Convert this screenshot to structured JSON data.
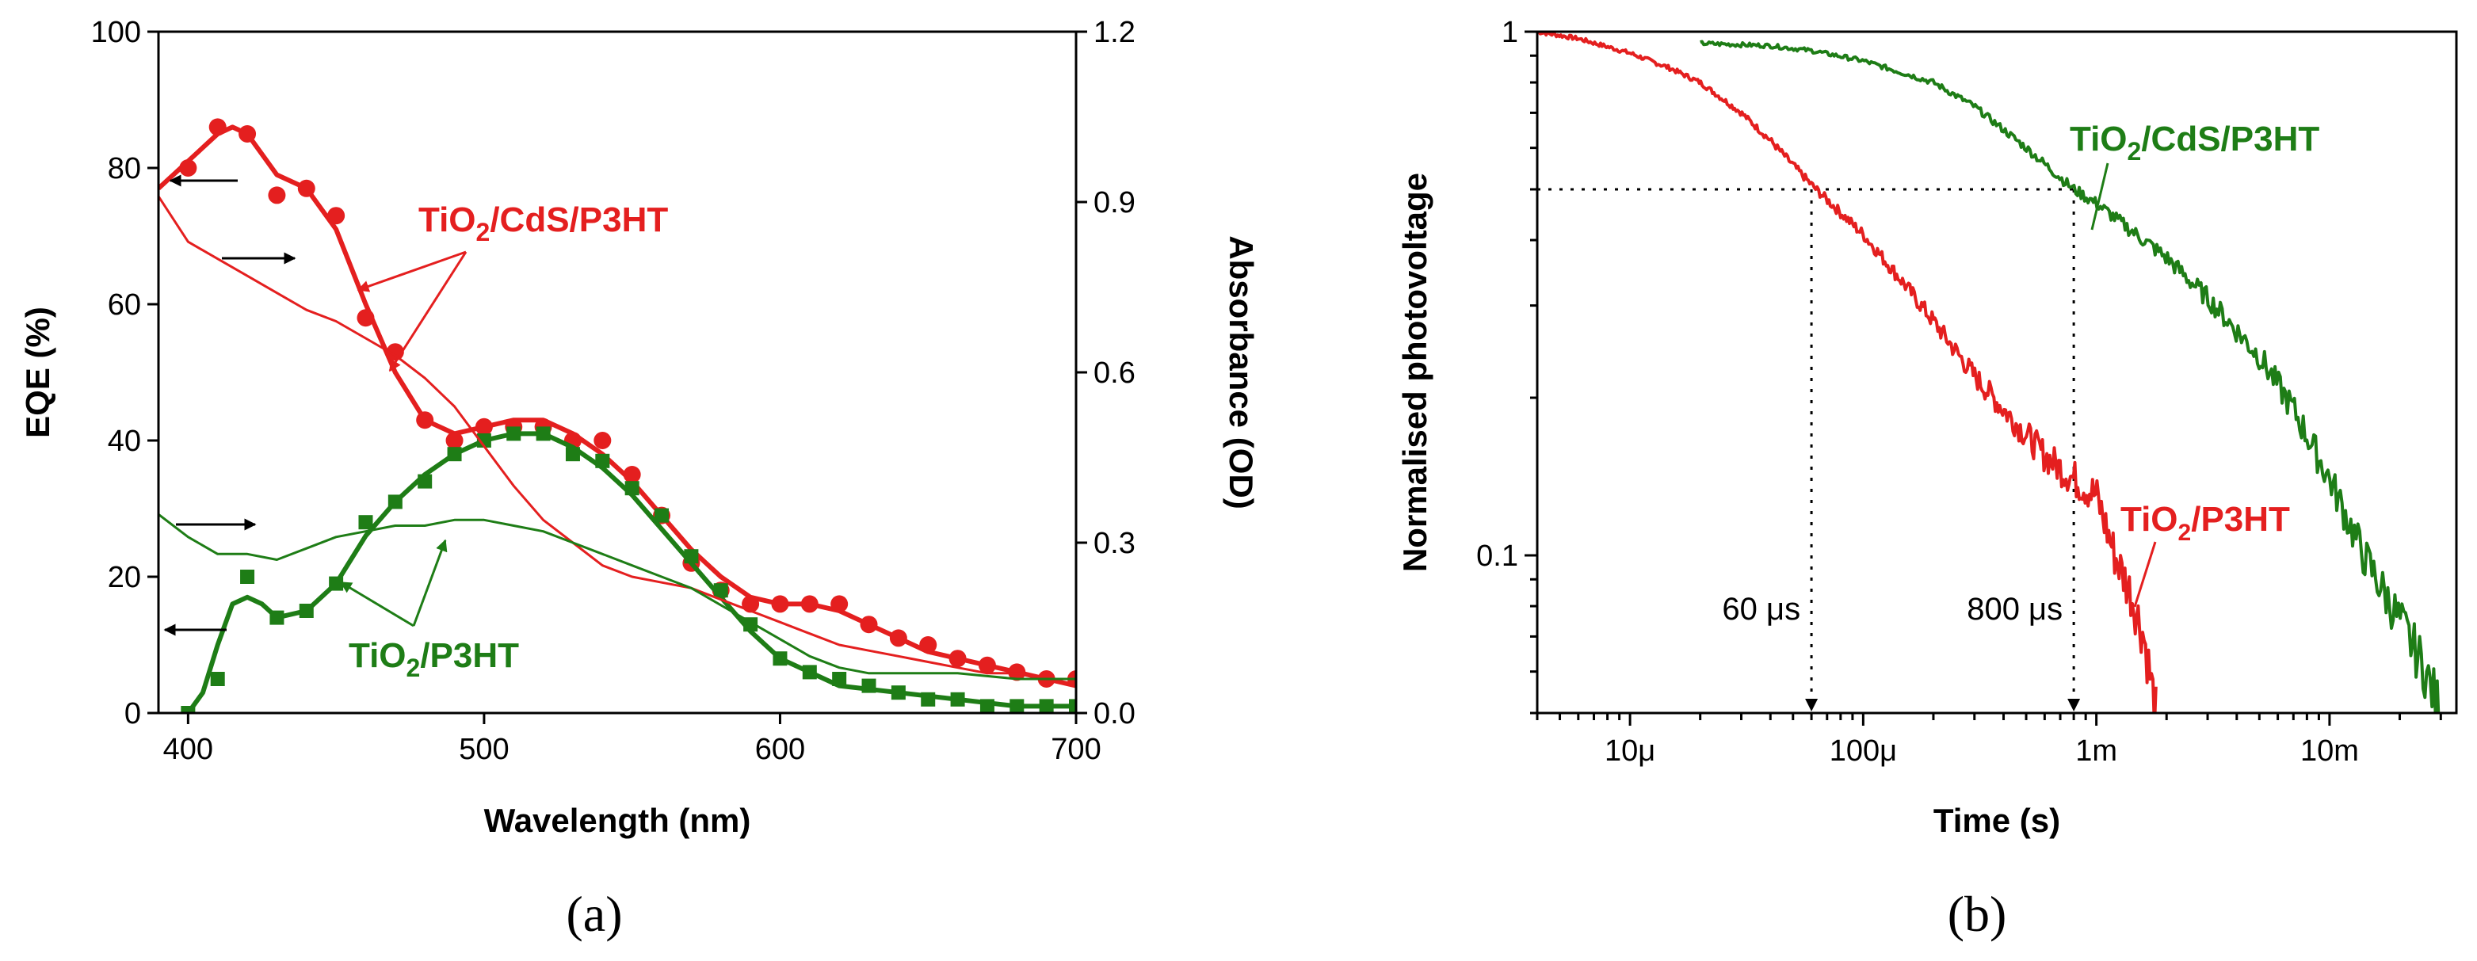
{
  "colors": {
    "red": "#e41f1f",
    "green": "#1e7d16",
    "black": "#000000"
  },
  "chart_data": [
    {
      "type": "line",
      "panel_label": "(a)",
      "xlabel": "Wavelength (nm)",
      "ylabel": "EQE (%)",
      "ylabel_right": "Absorbance (OD)",
      "xlim": [
        390,
        700
      ],
      "ylim": [
        0,
        100
      ],
      "ylim_right": [
        0,
        1.2
      ],
      "x_ticks": [
        400,
        500,
        600,
        700
      ],
      "y_ticks": [
        0,
        20,
        40,
        60,
        80,
        100
      ],
      "y_right_ticks": [
        "0.0",
        "0.3",
        "0.6",
        "0.9",
        "1.2"
      ],
      "series": [
        {
          "name": "TiO2/CdS/P3HT EQE",
          "axis": "left",
          "color": "#e41f1f",
          "marker": "circle",
          "x": [
            400,
            410,
            420,
            430,
            440,
            450,
            460,
            470,
            480,
            490,
            500,
            510,
            520,
            530,
            540,
            550,
            560,
            570,
            580,
            590,
            600,
            610,
            620,
            630,
            640,
            650,
            660,
            670,
            680,
            690,
            700
          ],
          "values": [
            80,
            86,
            85,
            76,
            77,
            73,
            58,
            53,
            43,
            40,
            42,
            42,
            42,
            40,
            40,
            35,
            29,
            22,
            18,
            16,
            16,
            16,
            16,
            13,
            11,
            10,
            8,
            7,
            6,
            5,
            5
          ],
          "curve_x": [
            390,
            400,
            410,
            415,
            420,
            430,
            440,
            450,
            460,
            470,
            480,
            490,
            500,
            510,
            520,
            530,
            540,
            550,
            560,
            570,
            580,
            590,
            600,
            610,
            620,
            630,
            640,
            650,
            660,
            670,
            680,
            690,
            700
          ],
          "curve_values": [
            77,
            81,
            85,
            86,
            85,
            79,
            77,
            71,
            60,
            50,
            43,
            41,
            42,
            43,
            43,
            41,
            38,
            34,
            29,
            24,
            20,
            17,
            16,
            16,
            15,
            13,
            11,
            9,
            8,
            7,
            6,
            5,
            4
          ]
        },
        {
          "name": "TiO2/P3HT EQE",
          "axis": "left",
          "color": "#1e7d16",
          "marker": "square",
          "x": [
            400,
            410,
            420,
            430,
            440,
            450,
            460,
            470,
            480,
            490,
            500,
            510,
            520,
            530,
            540,
            550,
            560,
            570,
            580,
            590,
            600,
            610,
            620,
            630,
            640,
            650,
            660,
            670,
            680,
            690,
            700
          ],
          "values": [
            0,
            5,
            20,
            14,
            15,
            19,
            28,
            31,
            34,
            38,
            40,
            41,
            41,
            38,
            37,
            33,
            29,
            23,
            18,
            13,
            8,
            6,
            5,
            4,
            3,
            2,
            2,
            1,
            1,
            1,
            1
          ],
          "curve_x": [
            400,
            405,
            410,
            415,
            420,
            425,
            430,
            440,
            450,
            460,
            470,
            480,
            490,
            500,
            510,
            520,
            530,
            540,
            550,
            560,
            570,
            580,
            590,
            600,
            610,
            620,
            640,
            660,
            680,
            700
          ],
          "curve_values": [
            0,
            3,
            10,
            16,
            17,
            16,
            14,
            15,
            19,
            26,
            31,
            35,
            38,
            40,
            41,
            41,
            39,
            36,
            32,
            27,
            22,
            17,
            12,
            8,
            6,
            4,
            3,
            2,
            1,
            1
          ]
        },
        {
          "name": "TiO2/CdS/P3HT absorbance",
          "axis": "right",
          "color": "#e41f1f",
          "marker": "none",
          "curve_x": [
            390,
            400,
            410,
            420,
            430,
            440,
            450,
            460,
            470,
            480,
            490,
            500,
            510,
            520,
            530,
            540,
            550,
            560,
            570,
            580,
            590,
            600,
            610,
            620,
            630,
            640,
            650,
            660,
            670,
            680,
            690,
            700
          ],
          "curve_values": [
            0.91,
            0.83,
            0.8,
            0.77,
            0.74,
            0.71,
            0.69,
            0.66,
            0.63,
            0.59,
            0.54,
            0.47,
            0.4,
            0.34,
            0.3,
            0.26,
            0.24,
            0.23,
            0.22,
            0.2,
            0.18,
            0.16,
            0.14,
            0.12,
            0.11,
            0.1,
            0.09,
            0.08,
            0.07,
            0.07,
            0.06,
            0.06
          ]
        },
        {
          "name": "TiO2/P3HT absorbance",
          "axis": "right",
          "color": "#1e7d16",
          "marker": "none",
          "curve_x": [
            390,
            400,
            410,
            420,
            430,
            440,
            450,
            460,
            470,
            480,
            490,
            500,
            510,
            520,
            530,
            540,
            550,
            560,
            570,
            580,
            590,
            600,
            610,
            620,
            630,
            640,
            660,
            680,
            700
          ],
          "curve_values": [
            0.35,
            0.31,
            0.28,
            0.28,
            0.27,
            0.29,
            0.31,
            0.32,
            0.33,
            0.33,
            0.34,
            0.34,
            0.33,
            0.32,
            0.3,
            0.28,
            0.26,
            0.24,
            0.22,
            0.19,
            0.16,
            0.13,
            0.1,
            0.08,
            0.07,
            0.07,
            0.07,
            0.06,
            0.06
          ]
        }
      ],
      "annotations": {
        "label_cds": {
          "base": "TiO",
          "sub": "2",
          "rest": "/CdS/P3HT",
          "color": "#e41f1f"
        },
        "label_p3ht": {
          "base": "TiO",
          "sub": "2",
          "rest": "/P3HT",
          "color": "#1e7d16"
        }
      }
    },
    {
      "type": "line",
      "panel_label": "(b)",
      "xlabel": "Time (s)",
      "ylabel": "Normalised photovoltage",
      "xscale": "log",
      "yscale": "log",
      "xlim": [
        4e-06,
        0.035
      ],
      "ylim": [
        0.05,
        1.0
      ],
      "x_ticks": [
        {
          "value": 1e-05,
          "label": "10μ"
        },
        {
          "value": 0.0001,
          "label": "100μ"
        },
        {
          "value": 0.001,
          "label": "1m"
        },
        {
          "value": 0.01,
          "label": "10m"
        }
      ],
      "y_ticks": [
        {
          "value": 1,
          "label": "1"
        },
        {
          "value": 0.1,
          "label": "0.1"
        }
      ],
      "half_level": 0.5,
      "series": [
        {
          "name": "TiO2/P3HT",
          "color": "#e41f1f",
          "x": [
            4e-06,
            6e-06,
            1e-05,
            1.5e-05,
            2e-05,
            3e-05,
            4e-05,
            6e-05,
            0.0001,
            0.00015,
            0.0002,
            0.0003,
            0.0004,
            0.0005,
            0.0006,
            0.0008,
            0.001,
            0.0012,
            0.0014,
            0.0016,
            0.0018
          ],
          "values": [
            1.0,
            0.97,
            0.91,
            0.85,
            0.8,
            0.7,
            0.62,
            0.51,
            0.41,
            0.33,
            0.28,
            0.22,
            0.19,
            0.17,
            0.155,
            0.14,
            0.13,
            0.1,
            0.085,
            0.07,
            0.05
          ]
        },
        {
          "name": "TiO2/CdS/P3HT",
          "color": "#1e7d16",
          "x": [
            2e-05,
            4e-05,
            6e-05,
            0.0001,
            0.0002,
            0.0003,
            0.0005,
            0.0008,
            0.001,
            0.002,
            0.003,
            0.005,
            0.007,
            0.01,
            0.014,
            0.02,
            0.025,
            0.03
          ],
          "values": [
            0.95,
            0.94,
            0.92,
            0.88,
            0.8,
            0.72,
            0.6,
            0.5,
            0.47,
            0.37,
            0.31,
            0.24,
            0.19,
            0.14,
            0.1,
            0.075,
            0.062,
            0.05
          ]
        }
      ],
      "markers": [
        {
          "x": 6e-05,
          "label": "60 μs"
        },
        {
          "x": 0.0008,
          "label": "800 μs"
        }
      ],
      "annotations": {
        "label_cds": {
          "base": "TiO",
          "sub": "2",
          "rest": "/CdS/P3HT",
          "color": "#1e7d16"
        },
        "label_p3ht": {
          "base": "TiO",
          "sub": "2",
          "rest": "/P3HT",
          "color": "#e41f1f"
        }
      }
    }
  ]
}
